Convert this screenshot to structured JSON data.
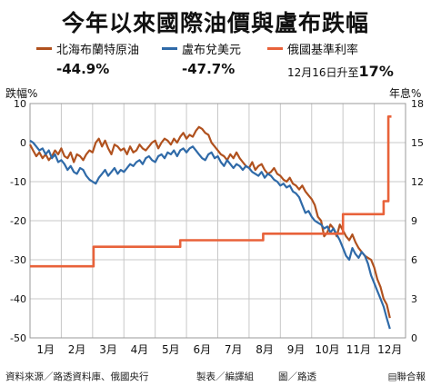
{
  "title": "今年以來國際油價與盧布跌幅",
  "legend": [
    {
      "name": "北海布蘭特原油",
      "value": "-44.9%",
      "color": "#b0511e"
    },
    {
      "name": "盧布兌美元",
      "value": "-47.7%",
      "color": "#2f6aa8"
    },
    {
      "name": "俄國基準利率",
      "note_prefix": "12月16日升至",
      "note_value": "17%",
      "color": "#e8623a"
    }
  ],
  "footer": {
    "source": "資料來源／路透資料庫、俄國央行",
    "production": "製表／編譯組",
    "photo": "圖／路透",
    "brand": "▤聯合報"
  },
  "chart_data": {
    "type": "line",
    "title": "今年以來國際油價與盧布跌幅",
    "ylabel": "跌幅%",
    "y2label": "年息%",
    "ylim": [
      -50,
      10
    ],
    "y2lim": [
      0,
      18
    ],
    "yticks": [
      "10",
      "0",
      "-10",
      "-20",
      "-30",
      "-40",
      "-50"
    ],
    "y2ticks": [
      "18",
      "15",
      "12",
      "9",
      "6",
      "3",
      "0"
    ],
    "xticks": [
      "1月",
      "2月",
      "3月",
      "4月",
      "5月",
      "6月",
      "7月",
      "8月",
      "9月",
      "10月",
      "11月",
      "12月"
    ],
    "grid": true,
    "x_unit": "month (1 = Jan 1)",
    "series": [
      {
        "name": "北海布蘭特原油",
        "axis": "left",
        "color": "#b0511e",
        "x": [
          1.0,
          1.1,
          1.2,
          1.3,
          1.4,
          1.5,
          1.6,
          1.7,
          1.8,
          1.9,
          2.0,
          2.1,
          2.2,
          2.3,
          2.4,
          2.5,
          2.6,
          2.7,
          2.8,
          2.9,
          3.0,
          3.1,
          3.2,
          3.3,
          3.4,
          3.5,
          3.6,
          3.7,
          3.8,
          3.9,
          4.0,
          4.1,
          4.2,
          4.3,
          4.4,
          4.5,
          4.6,
          4.7,
          4.8,
          4.9,
          5.0,
          5.1,
          5.2,
          5.3,
          5.4,
          5.5,
          5.6,
          5.7,
          5.8,
          5.9,
          6.0,
          6.1,
          6.2,
          6.3,
          6.4,
          6.5,
          6.6,
          6.7,
          6.8,
          6.9,
          7.0,
          7.1,
          7.2,
          7.3,
          7.4,
          7.5,
          7.6,
          7.7,
          7.8,
          7.9,
          8.0,
          8.1,
          8.2,
          8.3,
          8.4,
          8.5,
          8.6,
          8.7,
          8.8,
          8.9,
          9.0,
          9.1,
          9.2,
          9.3,
          9.4,
          9.5,
          9.6,
          9.7,
          9.8,
          9.9,
          10.0,
          10.1,
          10.2,
          10.3,
          10.4,
          10.5,
          10.6,
          10.7,
          10.8,
          10.9,
          11.0,
          11.1,
          11.2,
          11.3,
          11.4,
          11.5,
          11.6,
          11.7,
          11.8,
          11.9,
          12.0,
          12.1,
          12.2,
          12.3,
          12.4,
          12.5
        ],
        "values": [
          -0.5,
          -2,
          -3.5,
          -2.5,
          -4,
          -3,
          -4.5,
          -3.5,
          -2,
          -3,
          -1.5,
          -3.5,
          -4,
          -2.5,
          -5,
          -3,
          -3.5,
          -4.5,
          -3,
          -2,
          -2.5,
          0,
          1,
          -1,
          0.5,
          -1.5,
          -3,
          -0.5,
          -1,
          -2,
          -1.5,
          -3,
          -1,
          -2.5,
          -2,
          -0.5,
          -1.5,
          -2,
          -1,
          0,
          0.5,
          -1.5,
          0,
          1,
          0.5,
          -0.5,
          1,
          0,
          1.5,
          2.5,
          1,
          2,
          1.5,
          3,
          4,
          3.5,
          2.5,
          2,
          0,
          -1,
          -2,
          -3,
          -3.5,
          -4.5,
          -3,
          -4,
          -2.5,
          -4,
          -5,
          -6,
          -6.5,
          -5,
          -7,
          -6,
          -5.5,
          -7,
          -8,
          -7.5,
          -6.5,
          -8,
          -8.5,
          -9.5,
          -10,
          -9,
          -10.5,
          -11,
          -12,
          -11,
          -12.5,
          -13.5,
          -14.5,
          -16,
          -19,
          -20,
          -24,
          -23,
          -21,
          -22,
          -24,
          -21,
          -22.5,
          -24,
          -25,
          -23.5,
          -25.5,
          -27,
          -28,
          -29,
          -29.5,
          -30,
          -32,
          -35,
          -37,
          -40,
          -41.5,
          -44.9
        ]
      },
      {
        "name": "盧布兌美元",
        "axis": "left",
        "color": "#2f6aa8",
        "x": [
          1.0,
          1.1,
          1.2,
          1.3,
          1.4,
          1.5,
          1.6,
          1.7,
          1.8,
          1.9,
          2.0,
          2.1,
          2.2,
          2.3,
          2.4,
          2.5,
          2.6,
          2.7,
          2.8,
          2.9,
          3.0,
          3.1,
          3.2,
          3.3,
          3.4,
          3.5,
          3.6,
          3.7,
          3.8,
          3.9,
          4.0,
          4.1,
          4.2,
          4.3,
          4.4,
          4.5,
          4.6,
          4.7,
          4.8,
          4.9,
          5.0,
          5.1,
          5.2,
          5.3,
          5.4,
          5.5,
          5.6,
          5.7,
          5.8,
          5.9,
          6.0,
          6.1,
          6.2,
          6.3,
          6.4,
          6.5,
          6.6,
          6.7,
          6.8,
          6.9,
          7.0,
          7.1,
          7.2,
          7.3,
          7.4,
          7.5,
          7.6,
          7.7,
          7.8,
          7.9,
          8.0,
          8.1,
          8.2,
          8.3,
          8.4,
          8.5,
          8.6,
          8.7,
          8.8,
          8.9,
          9.0,
          9.1,
          9.2,
          9.3,
          9.4,
          9.5,
          9.6,
          9.7,
          9.8,
          9.9,
          10.0,
          10.1,
          10.2,
          10.3,
          10.4,
          10.5,
          10.6,
          10.7,
          10.8,
          10.9,
          11.0,
          11.1,
          11.2,
          11.3,
          11.4,
          11.5,
          11.6,
          11.7,
          11.8,
          11.9,
          12.0,
          12.1,
          12.2,
          12.3,
          12.4,
          12.5
        ],
        "values": [
          0.5,
          0,
          -1,
          -2,
          -1.5,
          -3,
          -2,
          -4,
          -3,
          -5,
          -4.5,
          -5.5,
          -7,
          -6,
          -7.5,
          -8,
          -6.5,
          -7,
          -8.5,
          -9.5,
          -10,
          -10.5,
          -9,
          -8,
          -7,
          -8.5,
          -7.5,
          -6.5,
          -8,
          -7,
          -7.5,
          -6.5,
          -5.5,
          -6,
          -5,
          -4.5,
          -5.5,
          -4,
          -3.5,
          -4.5,
          -5,
          -3.5,
          -3,
          -4,
          -2.5,
          -3,
          -2,
          -3.5,
          -2,
          -1.5,
          -2.5,
          -1.5,
          -1,
          -2,
          -3,
          -4,
          -4.5,
          -3,
          -2.5,
          -4,
          -3.5,
          -5,
          -6,
          -4.5,
          -5.5,
          -6.5,
          -5.5,
          -6,
          -7,
          -6,
          -6.5,
          -7.5,
          -8,
          -8.5,
          -7.5,
          -9,
          -8,
          -8.5,
          -9.5,
          -10,
          -11,
          -10.5,
          -11.5,
          -11,
          -12.5,
          -13,
          -14,
          -16,
          -18,
          -17.5,
          -19,
          -20,
          -20.5,
          -21,
          -22,
          -21.5,
          -23,
          -22,
          -23.5,
          -25,
          -27,
          -29,
          -30,
          -27,
          -28.5,
          -29.5,
          -28,
          -29,
          -31,
          -34,
          -36,
          -38,
          -40,
          -42,
          -45,
          -47.7
        ]
      },
      {
        "name": "俄國基準利率",
        "axis": "right",
        "color": "#e8623a",
        "step": true,
        "x": [
          1.0,
          3.03,
          3.03,
          5.8,
          5.8,
          8.45,
          8.45,
          11.0,
          11.0,
          12.3,
          12.3,
          12.45,
          12.45,
          12.55
        ],
        "values": [
          5.5,
          5.5,
          7.0,
          7.0,
          7.5,
          7.5,
          8.0,
          8.0,
          9.5,
          9.5,
          10.5,
          10.5,
          17.0,
          17.0
        ]
      }
    ]
  }
}
